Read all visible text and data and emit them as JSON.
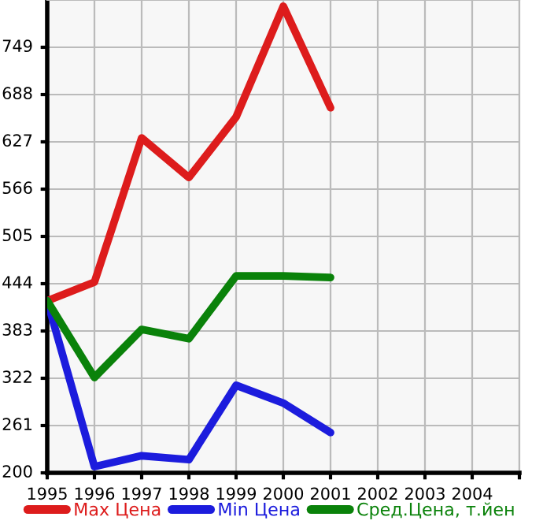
{
  "chart_data": {
    "type": "line",
    "x": [
      1995,
      1996,
      1997,
      1998,
      1999,
      2000,
      2001
    ],
    "series": [
      {
        "name": "Max Цена",
        "color": "#dd1c1c",
        "values": [
          422,
          446,
          632,
          581,
          659,
          802,
          671
        ]
      },
      {
        "name": "Min Цена",
        "color": "#1c1cdd",
        "values": [
          422,
          208,
          222,
          217,
          313,
          290,
          252
        ]
      },
      {
        "name": "Сред.Цена, т.йен",
        "color": "#0a820a",
        "values": [
          422,
          323,
          385,
          373,
          454,
          454,
          452
        ]
      }
    ],
    "xlim": [
      1995,
      2005
    ],
    "xticks": [
      1995,
      1996,
      1997,
      1998,
      1999,
      2000,
      2001,
      2002,
      2003,
      2004,
      {
        "value": 2005,
        "label": null
      }
    ],
    "ylim": [
      200,
      810
    ],
    "yticks": [
      200,
      261,
      322,
      383,
      444,
      505,
      566,
      627,
      688,
      749
    ],
    "grid": true,
    "legend": "bottom",
    "marker": "none",
    "line_style": "solid"
  }
}
